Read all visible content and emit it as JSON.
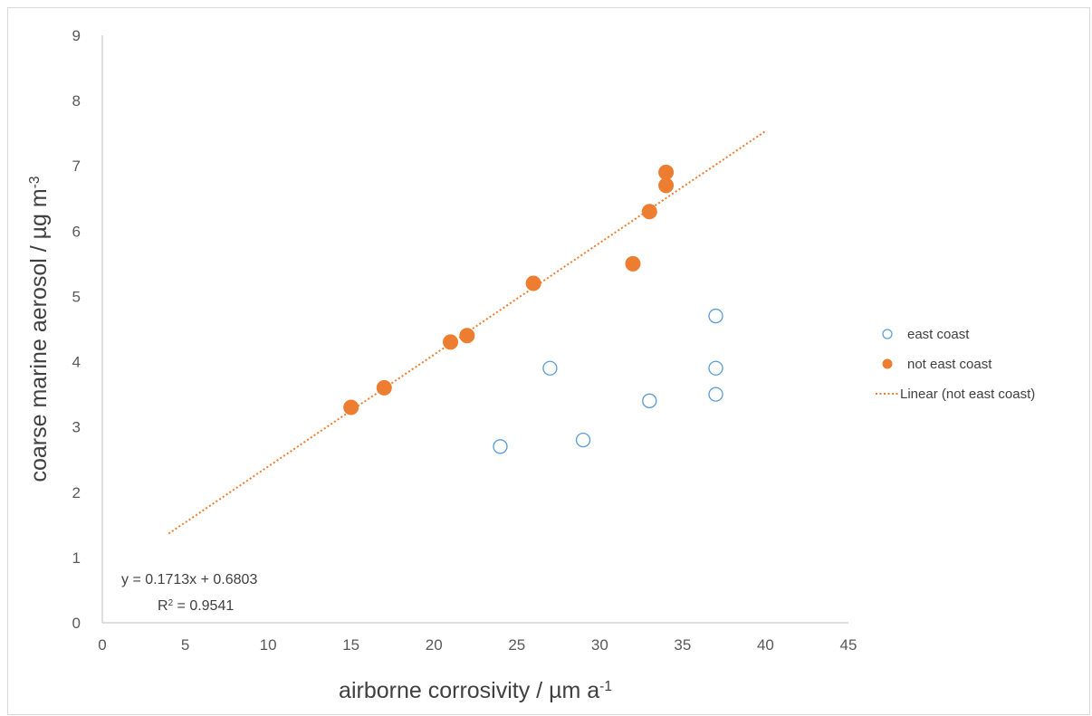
{
  "chart_data": {
    "type": "scatter",
    "xlabel": {
      "main": "airborne corrosivity / µm a",
      "sup": "-1"
    },
    "ylabel": {
      "main": "coarse marine aerosol / µg m",
      "sup": "-3"
    },
    "xlim": [
      0,
      45
    ],
    "ylim": [
      0,
      9
    ],
    "x_ticks": [
      "0",
      "5",
      "10",
      "15",
      "20",
      "25",
      "30",
      "35",
      "40",
      "45"
    ],
    "y_ticks": [
      "0",
      "1",
      "2",
      "3",
      "4",
      "5",
      "6",
      "7",
      "8",
      "9"
    ],
    "grid": false,
    "legend_position": "right",
    "series": [
      {
        "name": "east coast",
        "marker": "open-circle",
        "color": "#5b9bd5",
        "points": [
          {
            "x": 24,
            "y": 2.7
          },
          {
            "x": 27,
            "y": 3.9
          },
          {
            "x": 29,
            "y": 2.8
          },
          {
            "x": 33,
            "y": 3.4
          },
          {
            "x": 37,
            "y": 4.7
          },
          {
            "x": 37,
            "y": 3.9
          },
          {
            "x": 37,
            "y": 3.5
          }
        ]
      },
      {
        "name": "not east coast",
        "marker": "filled-circle",
        "color": "#ed7d31",
        "points": [
          {
            "x": 15,
            "y": 3.3
          },
          {
            "x": 17,
            "y": 3.6
          },
          {
            "x": 21,
            "y": 4.3
          },
          {
            "x": 22,
            "y": 4.4
          },
          {
            "x": 26,
            "y": 5.2
          },
          {
            "x": 32,
            "y": 5.5
          },
          {
            "x": 33,
            "y": 6.3
          },
          {
            "x": 34,
            "y": 6.7
          },
          {
            "x": 34,
            "y": 6.9
          }
        ]
      }
    ],
    "trendline": {
      "name": "Linear (not east coast)",
      "type": "linear",
      "style": "dotted",
      "color": "#ed7d31",
      "slope": 0.1713,
      "intercept": 0.6803,
      "x_range": [
        4,
        40
      ],
      "equation": "y = 0.1713x + 0.6803",
      "r_squared": {
        "label": "R",
        "sup": "2",
        "value": " = 0.9541"
      }
    }
  }
}
